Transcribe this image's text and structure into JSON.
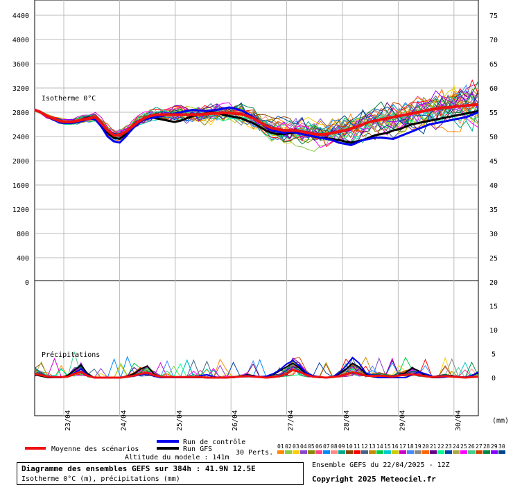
{
  "colors": {
    "mean": "#ee1111",
    "control": "#0000ee",
    "gfs": "#000000",
    "grid": "#bbbbbb"
  },
  "chart_data": {
    "type": "line",
    "upper_panel": {
      "label": "Isotherme 0°C",
      "y_left_ticks": [
        "4400",
        "4000",
        "3600",
        "3200",
        "2800",
        "2400",
        "2000",
        "1600",
        "1200",
        "800",
        "400",
        "0"
      ],
      "y_right_ticks": [
        "75",
        "70",
        "65",
        "60",
        "55",
        "50",
        "45",
        "40",
        "35",
        "30",
        "25",
        "20"
      ],
      "ylim": [
        0,
        4600
      ],
      "mean_series": [
        2840,
        2800,
        2740,
        2700,
        2660,
        2640,
        2640,
        2660,
        2680,
        2700,
        2720,
        2620,
        2500,
        2420,
        2420,
        2480,
        2560,
        2640,
        2700,
        2740,
        2760,
        2760,
        2760,
        2760,
        2760,
        2760,
        2760,
        2760,
        2770,
        2780,
        2780,
        2790,
        2790,
        2780,
        2770,
        2740,
        2700,
        2640,
        2580,
        2540,
        2520,
        2500,
        2500,
        2500,
        2480,
        2460,
        2440,
        2430,
        2440,
        2460,
        2480,
        2500,
        2530,
        2560,
        2600,
        2640,
        2660,
        2680,
        2700,
        2720,
        2740,
        2760,
        2780,
        2800,
        2820,
        2840,
        2860,
        2870,
        2880,
        2890,
        2900,
        2910,
        2920,
        2930
      ],
      "control_series": [
        2840,
        2800,
        2740,
        2680,
        2640,
        2620,
        2620,
        2640,
        2660,
        2700,
        2680,
        2560,
        2400,
        2320,
        2300,
        2400,
        2520,
        2620,
        2680,
        2700,
        2720,
        2740,
        2760,
        2780,
        2800,
        2820,
        2840,
        2830,
        2820,
        2830,
        2840,
        2860,
        2880,
        2860,
        2830,
        2780,
        2720,
        2640,
        2560,
        2500,
        2480,
        2460,
        2480,
        2460,
        2440,
        2420,
        2400,
        2380,
        2360,
        2340,
        2300,
        2280,
        2260,
        2300,
        2340,
        2360,
        2380,
        2380,
        2370,
        2360,
        2400,
        2440,
        2480,
        2520,
        2560,
        2600,
        2620,
        2640,
        2660,
        2680,
        2700,
        2720,
        2760,
        2800
      ],
      "gfs_series": [
        2840,
        2800,
        2730,
        2680,
        2650,
        2630,
        2640,
        2660,
        2690,
        2710,
        2690,
        2600,
        2460,
        2380,
        2360,
        2440,
        2560,
        2650,
        2700,
        2720,
        2700,
        2680,
        2660,
        2640,
        2660,
        2700,
        2740,
        2760,
        2780,
        2800,
        2790,
        2760,
        2740,
        2720,
        2700,
        2660,
        2620,
        2560,
        2500,
        2460,
        2440,
        2440,
        2460,
        2460,
        2440,
        2420,
        2400,
        2380,
        2370,
        2360,
        2340,
        2320,
        2300,
        2320,
        2340,
        2380,
        2420,
        2440,
        2460,
        2500,
        2520,
        2560,
        2600,
        2620,
        2640,
        2660,
        2680,
        2700,
        2720,
        2740,
        2760,
        2780,
        2800,
        2820
      ]
    },
    "lower_panel": {
      "label": "Précipitations",
      "y_right_ticks": [
        "20",
        "15",
        "10",
        "5",
        "0"
      ],
      "ylim": [
        -7,
        20
      ],
      "mean_series": [
        0.8,
        0.5,
        0.2,
        0.1,
        0.1,
        0.2,
        0.8,
        1.2,
        0.4,
        0,
        0,
        0,
        0,
        0,
        0.2,
        0.4,
        0.8,
        1.0,
        0.5,
        0.2,
        0.1,
        0.1,
        0.1,
        0.1,
        0.1,
        0.1,
        0,
        0,
        0,
        0,
        0.1,
        0.2,
        0.3,
        0.2,
        0.1,
        0,
        0.1,
        0.3,
        0.8,
        1.6,
        1.2,
        0.6,
        0.2,
        0.1,
        0,
        0.1,
        0.3,
        0.7,
        1.1,
        0.8,
        0.4,
        0.3,
        0.4,
        0.3,
        0.2,
        0.4,
        0.6,
        0.7,
        0.5,
        0.3,
        0.1,
        0.2,
        0.3,
        0.2,
        0.1,
        0,
        0.1,
        0.2
      ],
      "control_series": [
        0.8,
        0.6,
        0.2,
        0,
        0,
        0.2,
        1.0,
        1.8,
        0.6,
        0,
        0,
        0,
        0,
        0,
        0.1,
        0.3,
        0.6,
        0.8,
        0.3,
        0,
        0,
        0,
        0,
        0,
        0,
        0.4,
        0.6,
        0.2,
        0,
        0,
        0,
        0.2,
        0.5,
        0.3,
        0.2,
        0.3,
        0.8,
        1.6,
        2.8,
        3.6,
        2.4,
        1.0,
        0.4,
        0.2,
        0,
        0.2,
        1.0,
        2.4,
        4.2,
        3.0,
        1.0,
        0.3,
        0,
        0,
        0,
        0,
        0,
        0.6,
        1.2,
        0.8,
        0.3,
        0,
        0.1,
        0.3,
        0.2,
        0.1,
        0.4,
        1.2
      ],
      "gfs_series": [
        0.6,
        0.3,
        0,
        0,
        0,
        0.5,
        1.5,
        2.6,
        0.8,
        0,
        0,
        0,
        0,
        0,
        0.3,
        0.8,
        1.8,
        2.4,
        0.8,
        0.1,
        0,
        0,
        0,
        0,
        0,
        0,
        0,
        0,
        0,
        0,
        0,
        0.2,
        0.6,
        0.4,
        0.1,
        0.2,
        0.6,
        1.4,
        2.2,
        3.0,
        2.0,
        0.8,
        0.2,
        0,
        0,
        0.2,
        0.8,
        1.8,
        3.0,
        2.2,
        0.8,
        0.2,
        0,
        0,
        0,
        0.5,
        1.0,
        2.0,
        1.4,
        0.4,
        0,
        0,
        0.2,
        0.4,
        0.2,
        0,
        0.4,
        1.0
      ]
    },
    "x_dates": [
      "23/04",
      "24/04",
      "25/04",
      "26/04",
      "27/04",
      "28/04",
      "29/04",
      "30/04"
    ],
    "x_unit_label": "(mm)",
    "members_label": "30 Perts.",
    "member_numbers": [
      "01",
      "02",
      "03",
      "04",
      "05",
      "06",
      "07",
      "08",
      "09",
      "10",
      "11",
      "12",
      "13",
      "14",
      "15",
      "16",
      "17",
      "18",
      "19",
      "20",
      "21",
      "22",
      "23",
      "24",
      "25",
      "26",
      "27",
      "28",
      "29",
      "30"
    ],
    "member_colors": [
      "#ff8800",
      "#88cc44",
      "#ffcc00",
      "#8844cc",
      "#888800",
      "#ff4488",
      "#0088ff",
      "#ff8888",
      "#00aa88",
      "#884400",
      "#ff0000",
      "#446688",
      "#cc8800",
      "#00cc44",
      "#00cccc",
      "#cccc00",
      "#cc00cc",
      "#4488ff",
      "#888888",
      "#ff6600",
      "#660088",
      "#00ff88",
      "#0044aa",
      "#aaaa44",
      "#ff00ff",
      "#44cc88",
      "#cc4400",
      "#008844",
      "#8800ff",
      "#004488"
    ],
    "legend": {
      "mean": "Moyenne des scénarios",
      "control": "Run de contrôle",
      "gfs": "Run GFS"
    },
    "altitude_text": "Altitude du modele : 141m"
  },
  "footer": {
    "title": "Diagramme des ensembles GEFS sur 384h : 41.9N 12.5E",
    "subtitle": "Isotherme 0°C (m), précipitations (mm)",
    "ensemble_date": "Ensemble GEFS du 22/04/2025 - 12Z",
    "copyright": "Copyright 2025 Meteociel.fr"
  }
}
